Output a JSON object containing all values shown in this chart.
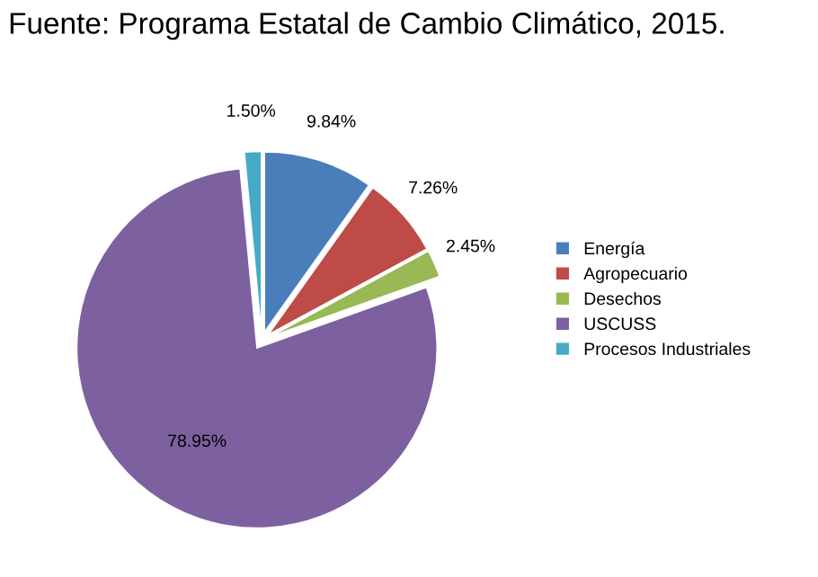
{
  "chart_data": {
    "type": "pie",
    "title": "Fuente: Programa Estatal de Cambio Climático, 2015.",
    "categories": [
      "Energía",
      "Agropecuario",
      "Desechos",
      "USCUSS",
      "Procesos Industriales"
    ],
    "values": [
      9.84,
      7.26,
      2.45,
      78.95,
      1.5
    ],
    "value_labels": [
      "9.84%",
      "7.26%",
      "2.45%",
      "78.95%",
      "1.50%"
    ],
    "colors": [
      "#4a7ebb",
      "#be4b48",
      "#98b954",
      "#7d60a0",
      "#46aac5"
    ],
    "legend": "right"
  }
}
